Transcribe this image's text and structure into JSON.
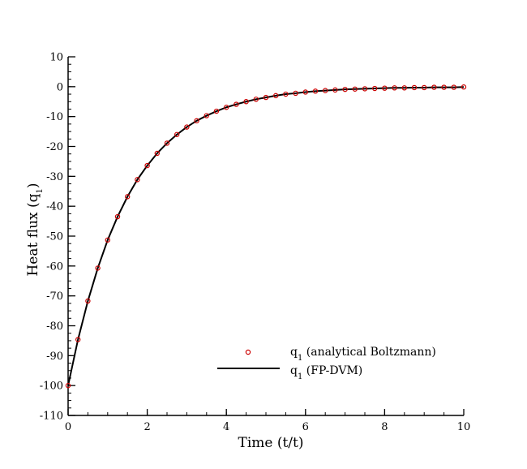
{
  "chart_data": {
    "type": "line",
    "title": "",
    "xlabel": "Time (t/t)",
    "ylabel_main": "Heat flux (q",
    "ylabel_sub": "1",
    "ylabel_close": ")",
    "xlim": [
      0,
      10
    ],
    "ylim": [
      -110,
      10
    ],
    "x_ticks": [
      0,
      2,
      4,
      6,
      8,
      10
    ],
    "x_tick_labels": [
      "0",
      "2",
      "4",
      "6",
      "8",
      "10"
    ],
    "x_minor_step": 0.5,
    "y_ticks": [
      10,
      0,
      -10,
      -20,
      -30,
      -40,
      -50,
      -60,
      -70,
      -80,
      -90,
      -100,
      -110
    ],
    "y_tick_labels": [
      "10",
      "0",
      "-10",
      "-20",
      "-30",
      "-40",
      "-50",
      "-60",
      "-70",
      "-80",
      "-90",
      "-100",
      "-110"
    ],
    "y_minor_step": 2.5,
    "grid": false,
    "legend_position": "bottom-right",
    "series": [
      {
        "name_main": "q",
        "name_sub": "1",
        "name_rest": " (analytical Boltzmann)",
        "style": "markers",
        "color": "#cc0000",
        "x": [
          0,
          0.25,
          0.5,
          0.75,
          1.0,
          1.25,
          1.5,
          1.75,
          2.0,
          2.25,
          2.5,
          2.75,
          3.0,
          3.25,
          3.5,
          3.75,
          4.0,
          4.25,
          4.5,
          4.75,
          5.0,
          5.25,
          5.5,
          5.75,
          6.0,
          6.25,
          6.5,
          6.75,
          7.0,
          7.25,
          7.5,
          7.75,
          8.0,
          8.25,
          8.5,
          8.75,
          9.0,
          9.25,
          9.5,
          9.75,
          10.0
        ],
        "y": [
          -100,
          -84.6,
          -71.7,
          -60.7,
          -51.3,
          -43.5,
          -36.8,
          -31.1,
          -26.4,
          -22.3,
          -18.9,
          -16.0,
          -13.5,
          -11.4,
          -9.7,
          -8.2,
          -6.9,
          -5.9,
          -5.0,
          -4.2,
          -3.6,
          -3.0,
          -2.5,
          -2.2,
          -1.8,
          -1.5,
          -1.3,
          -1.1,
          -0.9,
          -0.8,
          -0.7,
          -0.6,
          -0.5,
          -0.4,
          -0.4,
          -0.3,
          -0.3,
          -0.2,
          -0.2,
          -0.2,
          -0.1
        ]
      },
      {
        "name_main": "q",
        "name_sub": "1",
        "name_rest": " (FP-DVM)",
        "style": "line",
        "color": "#000000",
        "x": [
          0,
          0.25,
          0.5,
          0.75,
          1.0,
          1.25,
          1.5,
          1.75,
          2.0,
          2.25,
          2.5,
          2.75,
          3.0,
          3.25,
          3.5,
          3.75,
          4.0,
          4.25,
          4.5,
          4.75,
          5.0,
          5.25,
          5.5,
          5.75,
          6.0,
          6.25,
          6.5,
          6.75,
          7.0,
          7.25,
          7.5,
          7.75,
          8.0,
          8.25,
          8.5,
          8.75,
          9.0,
          9.25,
          9.5,
          9.75,
          10.0
        ],
        "y": [
          -100,
          -84.6,
          -71.7,
          -60.7,
          -51.3,
          -43.5,
          -36.8,
          -31.1,
          -26.4,
          -22.3,
          -18.9,
          -16.0,
          -13.5,
          -11.4,
          -9.7,
          -8.2,
          -6.9,
          -5.9,
          -5.0,
          -4.2,
          -3.6,
          -3.0,
          -2.5,
          -2.2,
          -1.8,
          -1.5,
          -1.3,
          -1.1,
          -0.9,
          -0.8,
          -0.7,
          -0.6,
          -0.5,
          -0.4,
          -0.4,
          -0.3,
          -0.3,
          -0.2,
          -0.2,
          -0.2,
          -0.1
        ]
      }
    ]
  }
}
